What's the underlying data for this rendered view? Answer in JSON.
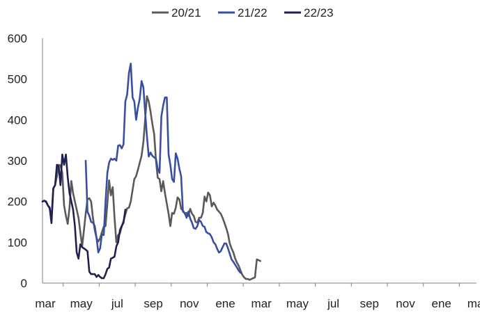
{
  "chart_data": {
    "type": "line",
    "x_categories": [
      "mar",
      "may",
      "jul",
      "sep",
      "nov",
      "ene",
      "mar",
      "may",
      "jul",
      "sep",
      "nov",
      "ene",
      "mar"
    ],
    "ylim": [
      0,
      600
    ],
    "y_ticks": [
      0,
      100,
      200,
      300,
      400,
      500,
      600
    ],
    "grid": false,
    "legend_position": "top",
    "series": [
      {
        "name": "20/21",
        "color": "#595959",
        "points": [
          [
            0,
            200
          ],
          [
            0.05,
            202
          ],
          [
            0.1,
            198
          ],
          [
            0.15,
            190
          ],
          [
            0.2,
            183
          ],
          [
            0.25,
            160
          ],
          [
            0.3,
            232
          ],
          [
            0.35,
            240
          ],
          [
            0.4,
            262
          ],
          [
            0.45,
            290
          ],
          [
            0.5,
            288
          ],
          [
            0.55,
            270
          ],
          [
            0.6,
            190
          ],
          [
            0.65,
            165
          ],
          [
            0.7,
            145
          ],
          [
            0.75,
            185
          ],
          [
            0.8,
            250
          ],
          [
            0.85,
            220
          ],
          [
            0.9,
            200
          ],
          [
            0.95,
            180
          ],
          [
            1.0,
            160
          ],
          [
            1.05,
            125
          ],
          [
            1.1,
            90
          ],
          [
            1.15,
            130
          ],
          [
            1.2,
            170
          ],
          [
            1.25,
            205
          ],
          [
            1.3,
            208
          ],
          [
            1.35,
            200
          ],
          [
            1.4,
            160
          ],
          [
            1.45,
            130
          ],
          [
            1.5,
            110
          ],
          [
            1.55,
            102
          ],
          [
            1.6,
            110
          ],
          [
            1.65,
            125
          ],
          [
            1.7,
            138
          ],
          [
            1.75,
            140
          ],
          [
            1.8,
            195
          ],
          [
            1.85,
            252
          ],
          [
            1.9,
            215
          ],
          [
            1.95,
            235
          ],
          [
            2.0,
            160
          ],
          [
            2.05,
            100
          ],
          [
            2.1,
            118
          ],
          [
            2.15,
            122
          ],
          [
            2.2,
            138
          ],
          [
            2.25,
            152
          ],
          [
            2.3,
            168
          ],
          [
            2.35,
            183
          ],
          [
            2.4,
            185
          ],
          [
            2.45,
            200
          ],
          [
            2.5,
            228
          ],
          [
            2.55,
            255
          ],
          [
            2.6,
            262
          ],
          [
            2.65,
            278
          ],
          [
            2.7,
            295
          ],
          [
            2.75,
            312
          ],
          [
            2.8,
            345
          ],
          [
            2.85,
            400
          ],
          [
            2.9,
            458
          ],
          [
            2.95,
            445
          ],
          [
            3.0,
            420
          ],
          [
            3.05,
            390
          ],
          [
            3.1,
            365
          ],
          [
            3.15,
            300
          ],
          [
            3.2,
            258
          ],
          [
            3.25,
            255
          ],
          [
            3.3,
            225
          ],
          [
            3.35,
            250
          ],
          [
            3.4,
            220
          ],
          [
            3.45,
            195
          ],
          [
            3.5,
            170
          ],
          [
            3.55,
            140
          ],
          [
            3.6,
            172
          ],
          [
            3.65,
            170
          ],
          [
            3.7,
            185
          ],
          [
            3.75,
            210
          ],
          [
            3.8,
            205
          ],
          [
            3.85,
            182
          ],
          [
            3.9,
            178
          ],
          [
            3.95,
            170
          ],
          [
            4.0,
            172
          ],
          [
            4.05,
            165
          ],
          [
            4.1,
            182
          ],
          [
            4.15,
            170
          ],
          [
            4.2,
            165
          ],
          [
            4.25,
            150
          ],
          [
            4.3,
            148
          ],
          [
            4.35,
            160
          ],
          [
            4.4,
            160
          ],
          [
            4.45,
            172
          ],
          [
            4.5,
            212
          ],
          [
            4.55,
            200
          ],
          [
            4.6,
            222
          ],
          [
            4.65,
            215
          ],
          [
            4.7,
            188
          ],
          [
            4.75,
            197
          ],
          [
            4.8,
            190
          ],
          [
            4.85,
            180
          ],
          [
            4.9,
            175
          ],
          [
            4.95,
            170
          ],
          [
            5.0,
            160
          ],
          [
            5.05,
            148
          ],
          [
            5.1,
            135
          ],
          [
            5.15,
            120
          ],
          [
            5.2,
            97
          ],
          [
            5.25,
            85
          ],
          [
            5.3,
            75
          ],
          [
            5.35,
            60
          ],
          [
            5.4,
            50
          ],
          [
            5.45,
            42
          ],
          [
            5.5,
            30
          ],
          [
            5.55,
            20
          ],
          [
            5.6,
            14
          ],
          [
            5.65,
            10
          ],
          [
            5.7,
            10
          ],
          [
            5.75,
            8
          ],
          [
            5.8,
            10
          ],
          [
            5.85,
            12
          ],
          [
            5.9,
            14
          ],
          [
            5.95,
            58
          ],
          [
            6.0,
            56
          ],
          [
            6.05,
            54
          ]
        ]
      },
      {
        "name": "21/22",
        "color": "#3a4ea0",
        "points": [
          [
            1.2,
            300
          ],
          [
            1.25,
            175
          ],
          [
            1.3,
            165
          ],
          [
            1.35,
            150
          ],
          [
            1.4,
            148
          ],
          [
            1.45,
            140
          ],
          [
            1.5,
            110
          ],
          [
            1.55,
            75
          ],
          [
            1.6,
            85
          ],
          [
            1.65,
            120
          ],
          [
            1.7,
            118
          ],
          [
            1.75,
            200
          ],
          [
            1.8,
            270
          ],
          [
            1.85,
            295
          ],
          [
            1.9,
            305
          ],
          [
            1.95,
            302
          ],
          [
            2.0,
            305
          ],
          [
            2.05,
            300
          ],
          [
            2.1,
            337
          ],
          [
            2.15,
            338
          ],
          [
            2.2,
            330
          ],
          [
            2.25,
            340
          ],
          [
            2.3,
            445
          ],
          [
            2.35,
            462
          ],
          [
            2.4,
            515
          ],
          [
            2.45,
            538
          ],
          [
            2.5,
            455
          ],
          [
            2.55,
            445
          ],
          [
            2.6,
            400
          ],
          [
            2.65,
            430
          ],
          [
            2.7,
            452
          ],
          [
            2.75,
            495
          ],
          [
            2.8,
            480
          ],
          [
            2.85,
            420
          ],
          [
            2.9,
            360
          ],
          [
            2.95,
            310
          ],
          [
            3.0,
            320
          ],
          [
            3.05,
            312
          ],
          [
            3.1,
            308
          ],
          [
            3.15,
            305
          ],
          [
            3.2,
            280
          ],
          [
            3.25,
            270
          ],
          [
            3.3,
            408
          ],
          [
            3.35,
            435
          ],
          [
            3.4,
            455
          ],
          [
            3.45,
            455
          ],
          [
            3.5,
            315
          ],
          [
            3.55,
            290
          ],
          [
            3.6,
            255
          ],
          [
            3.65,
            248
          ],
          [
            3.7,
            318
          ],
          [
            3.75,
            305
          ],
          [
            3.8,
            280
          ],
          [
            3.85,
            262
          ],
          [
            3.9,
            175
          ],
          [
            3.95,
            172
          ],
          [
            4.0,
            160
          ],
          [
            4.05,
            175
          ],
          [
            4.1,
            158
          ],
          [
            4.15,
            148
          ],
          [
            4.2,
            135
          ],
          [
            4.25,
            133
          ],
          [
            4.3,
            140
          ],
          [
            4.35,
            155
          ],
          [
            4.4,
            150
          ],
          [
            4.45,
            140
          ],
          [
            4.5,
            138
          ],
          [
            4.55,
            125
          ],
          [
            4.6,
            122
          ],
          [
            4.65,
            120
          ],
          [
            4.7,
            112
          ],
          [
            4.75,
            100
          ],
          [
            4.8,
            95
          ],
          [
            4.85,
            84
          ],
          [
            4.9,
            75
          ],
          [
            4.95,
            78
          ],
          [
            5.0,
            88
          ],
          [
            5.05,
            97
          ],
          [
            5.1,
            97
          ],
          [
            5.15,
            85
          ],
          [
            5.2,
            72
          ],
          [
            5.25,
            58
          ],
          [
            5.3,
            52
          ],
          [
            5.35,
            45
          ],
          [
            5.4,
            38
          ],
          [
            5.45,
            30
          ],
          [
            5.5,
            25
          ]
        ]
      },
      {
        "name": "22/23",
        "color": "#1f2050",
        "points": [
          [
            0,
            200
          ],
          [
            0.05,
            202
          ],
          [
            0.1,
            200
          ],
          [
            0.15,
            190
          ],
          [
            0.2,
            185
          ],
          [
            0.25,
            147
          ],
          [
            0.3,
            232
          ],
          [
            0.35,
            240
          ],
          [
            0.4,
            290
          ],
          [
            0.45,
            285
          ],
          [
            0.5,
            240
          ],
          [
            0.55,
            315
          ],
          [
            0.6,
            290
          ],
          [
            0.65,
            315
          ],
          [
            0.7,
            260
          ],
          [
            0.75,
            220
          ],
          [
            0.8,
            200
          ],
          [
            0.85,
            180
          ],
          [
            0.9,
            140
          ],
          [
            0.95,
            75
          ],
          [
            1.0,
            60
          ],
          [
            1.05,
            95
          ],
          [
            1.1,
            88
          ],
          [
            1.15,
            85
          ],
          [
            1.2,
            82
          ],
          [
            1.25,
            78
          ],
          [
            1.3,
            28
          ],
          [
            1.35,
            22
          ],
          [
            1.4,
            22
          ],
          [
            1.45,
            22
          ],
          [
            1.5,
            15
          ],
          [
            1.55,
            20
          ],
          [
            1.6,
            15
          ],
          [
            1.65,
            12
          ],
          [
            1.7,
            12
          ],
          [
            1.75,
            22
          ],
          [
            1.8,
            35
          ],
          [
            1.85,
            38
          ],
          [
            1.9,
            60
          ],
          [
            1.95,
            62
          ],
          [
            2.0,
            65
          ],
          [
            2.05,
            90
          ],
          [
            2.1,
            100
          ],
          [
            2.15,
            130
          ],
          [
            2.2,
            140
          ],
          [
            2.25,
            148
          ],
          [
            2.3,
            180
          ]
        ]
      }
    ]
  }
}
